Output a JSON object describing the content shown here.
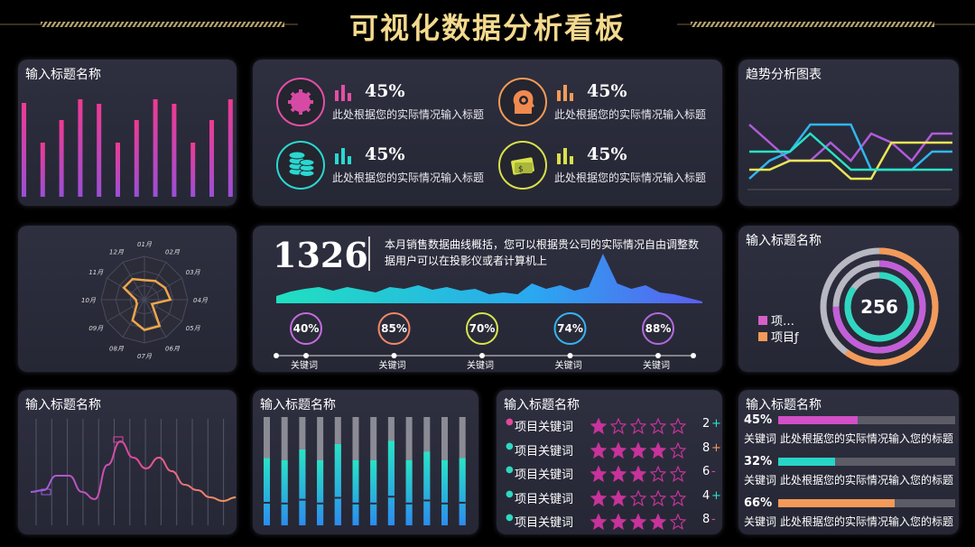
{
  "header": {
    "title": "可视化数据分析看板"
  },
  "panels": {
    "bars_top": {
      "title": "输入标题名称",
      "values": [
        104,
        60,
        85,
        108,
        103,
        60,
        85,
        108,
        103,
        60,
        85,
        108
      ]
    },
    "kpis": [
      {
        "value": "45%",
        "desc": "此处根据您的实际情况输入标题",
        "icon": "gear-icon",
        "color": "#e24fa5"
      },
      {
        "value": "45%",
        "desc": "此处根据您的实际情况输入标题",
        "icon": "head-gear-icon",
        "color": "#f39a59"
      },
      {
        "value": "45%",
        "desc": "此处根据您的实际情况输入标题",
        "icon": "coins-icon",
        "color": "#2ad8d0"
      },
      {
        "value": "45%",
        "desc": "此处根据您的实际情况输入标题",
        "icon": "money-icon",
        "color": "#d9e04b"
      }
    ],
    "trend": {
      "title": "趋势分析图表",
      "series": [
        {
          "color": "#b15bd8",
          "values": [
            7,
            5,
            3,
            3,
            5,
            3,
            6,
            5,
            3,
            6,
            6
          ]
        },
        {
          "color": "#2fb7f0",
          "values": [
            1,
            3,
            4,
            7,
            7,
            7,
            2,
            2,
            2,
            4,
            4
          ]
        },
        {
          "color": "#e8e656",
          "values": [
            2,
            2,
            3,
            3,
            3,
            1,
            1,
            5,
            5,
            5,
            5
          ]
        },
        {
          "color": "#28e3c6",
          "values": [
            4,
            4,
            4,
            6,
            4,
            2,
            2,
            2,
            2,
            2,
            2
          ]
        }
      ]
    },
    "radar": {
      "labels": [
        "01月",
        "02月",
        "03月",
        "04月",
        "05月",
        "06月",
        "07月",
        "08月",
        "09月",
        "10月",
        "11月",
        "12月"
      ],
      "values": [
        0.45,
        0.5,
        0.55,
        0.6,
        0.2,
        0.7,
        0.7,
        0.55,
        0.2,
        0.2,
        0.55,
        0.55
      ]
    },
    "sales": {
      "number": "1326",
      "desc": "本月销售数据曲线概括，您可以根据贵公司的实际情况自由调整数据用户可以在投影仪或者计算机上",
      "wave": [
        8,
        13,
        16,
        18,
        14,
        18,
        15,
        12,
        18,
        16,
        20,
        15,
        18,
        14,
        16,
        10,
        12,
        10,
        22,
        16,
        20,
        14,
        18,
        55,
        22,
        16,
        20,
        12,
        10,
        6,
        2
      ],
      "rings": [
        {
          "pct": "40%",
          "label": "关键词",
          "color": "#c56be0"
        },
        {
          "pct": "85%",
          "label": "关键词",
          "color": "#f08a6a"
        },
        {
          "pct": "70%",
          "label": "关键词",
          "color": "#d7e64d"
        },
        {
          "pct": "74%",
          "label": "关键词",
          "color": "#35b4f2"
        },
        {
          "pct": "88%",
          "label": "关键词",
          "color": "#b06ae0"
        }
      ]
    },
    "donut": {
      "title": "输入标题名称",
      "center": "256",
      "legend": [
        {
          "label": "项…",
          "color": "#d55fc8"
        },
        {
          "label": "项目ƒ",
          "color": "#f39a59"
        }
      ],
      "rings": [
        {
          "fraction": 0.6,
          "color": "#f39a59"
        },
        {
          "fraction": 0.75,
          "color": "#c25fd8"
        },
        {
          "fraction": 0.85,
          "color": "#2ed8c0"
        }
      ]
    },
    "line_bottom": {
      "title": "输入标题名称",
      "values": [
        22,
        24,
        40,
        40,
        22,
        14,
        52,
        78,
        60,
        48,
        60,
        45,
        30,
        24,
        16,
        12,
        16
      ]
    },
    "vbars": {
      "title": "输入标题名称",
      "values": [
        0.62,
        0.6,
        0.7,
        0.6,
        0.75,
        0.6,
        0.6,
        0.78,
        0.6,
        0.68,
        0.6,
        0.62
      ]
    },
    "ratings": {
      "title": "输入标题名称",
      "rows": [
        {
          "label": "项目关键词",
          "stars": 1,
          "count": "2",
          "sign": "+",
          "signColor": "#28e3c6",
          "dot": "#e2479c"
        },
        {
          "label": "项目关键词",
          "stars": 4,
          "count": "8",
          "sign": "+",
          "signColor": "#f39a59",
          "dot": "#2ed8c0"
        },
        {
          "label": "项目关键词",
          "stars": 3,
          "count": "6",
          "sign": "-",
          "signColor": "#e2479c",
          "dot": "#2ed8c0"
        },
        {
          "label": "项目关键词",
          "stars": 2,
          "count": "4",
          "sign": "+",
          "signColor": "#28e3c6",
          "dot": "#2ed8c0"
        },
        {
          "label": "项目关键词",
          "stars": 4,
          "count": "8",
          "sign": "-",
          "signColor": "#e2479c",
          "dot": "#2ed8c0"
        }
      ]
    },
    "progress": {
      "title": "输入标题名称",
      "items": [
        {
          "pct": "45%",
          "value": 0.45,
          "label": "关键词",
          "desc": "此处根据您的实际情况输入您的标题",
          "color": "#d14fc7"
        },
        {
          "pct": "32%",
          "value": 0.32,
          "label": "关键词",
          "desc": "此处根据您的实际情况输入您的标题",
          "color": "#27d5c6"
        },
        {
          "pct": "66%",
          "value": 0.66,
          "label": "关键词",
          "desc": "此处根据您的实际情况输入您的标题",
          "color": "#f39a59"
        }
      ]
    }
  },
  "chart_data": [
    {
      "type": "bar",
      "values": [
        104,
        60,
        85,
        108,
        103,
        60,
        85,
        108,
        103,
        60,
        85,
        108
      ],
      "title": "输入标题名称"
    },
    {
      "type": "line",
      "title": "趋势分析图表",
      "series": [
        {
          "values": [
            7,
            5,
            3,
            3,
            5,
            3,
            6,
            5,
            3,
            6,
            6
          ]
        },
        {
          "values": [
            1,
            3,
            4,
            7,
            7,
            7,
            2,
            2,
            2,
            4,
            4
          ]
        },
        {
          "values": [
            2,
            2,
            3,
            3,
            3,
            1,
            1,
            5,
            5,
            5,
            5
          ]
        },
        {
          "values": [
            4,
            4,
            4,
            6,
            4,
            2,
            2,
            2,
            2,
            2,
            2
          ]
        }
      ]
    },
    {
      "type": "radar",
      "categories": [
        "01月",
        "02月",
        "03月",
        "04月",
        "05月",
        "06月",
        "07月",
        "08月",
        "09月",
        "10月",
        "11月",
        "12月"
      ],
      "values": [
        0.45,
        0.5,
        0.55,
        0.6,
        0.2,
        0.7,
        0.7,
        0.55,
        0.2,
        0.2,
        0.55,
        0.55
      ]
    },
    {
      "type": "area",
      "values": [
        8,
        13,
        16,
        18,
        14,
        18,
        15,
        12,
        18,
        16,
        20,
        15,
        18,
        14,
        16,
        10,
        12,
        10,
        22,
        16,
        20,
        14,
        18,
        55,
        22,
        16,
        20,
        12,
        10,
        6,
        2
      ]
    },
    {
      "type": "line",
      "title": "输入标题名称",
      "values": [
        22,
        24,
        40,
        40,
        22,
        14,
        52,
        78,
        60,
        48,
        60,
        45,
        30,
        24,
        16,
        12,
        16
      ]
    },
    {
      "type": "bar",
      "title": "输入标题名称",
      "values": [
        0.62,
        0.6,
        0.7,
        0.6,
        0.75,
        0.6,
        0.6,
        0.78,
        0.6,
        0.68,
        0.6,
        0.62
      ]
    }
  ]
}
